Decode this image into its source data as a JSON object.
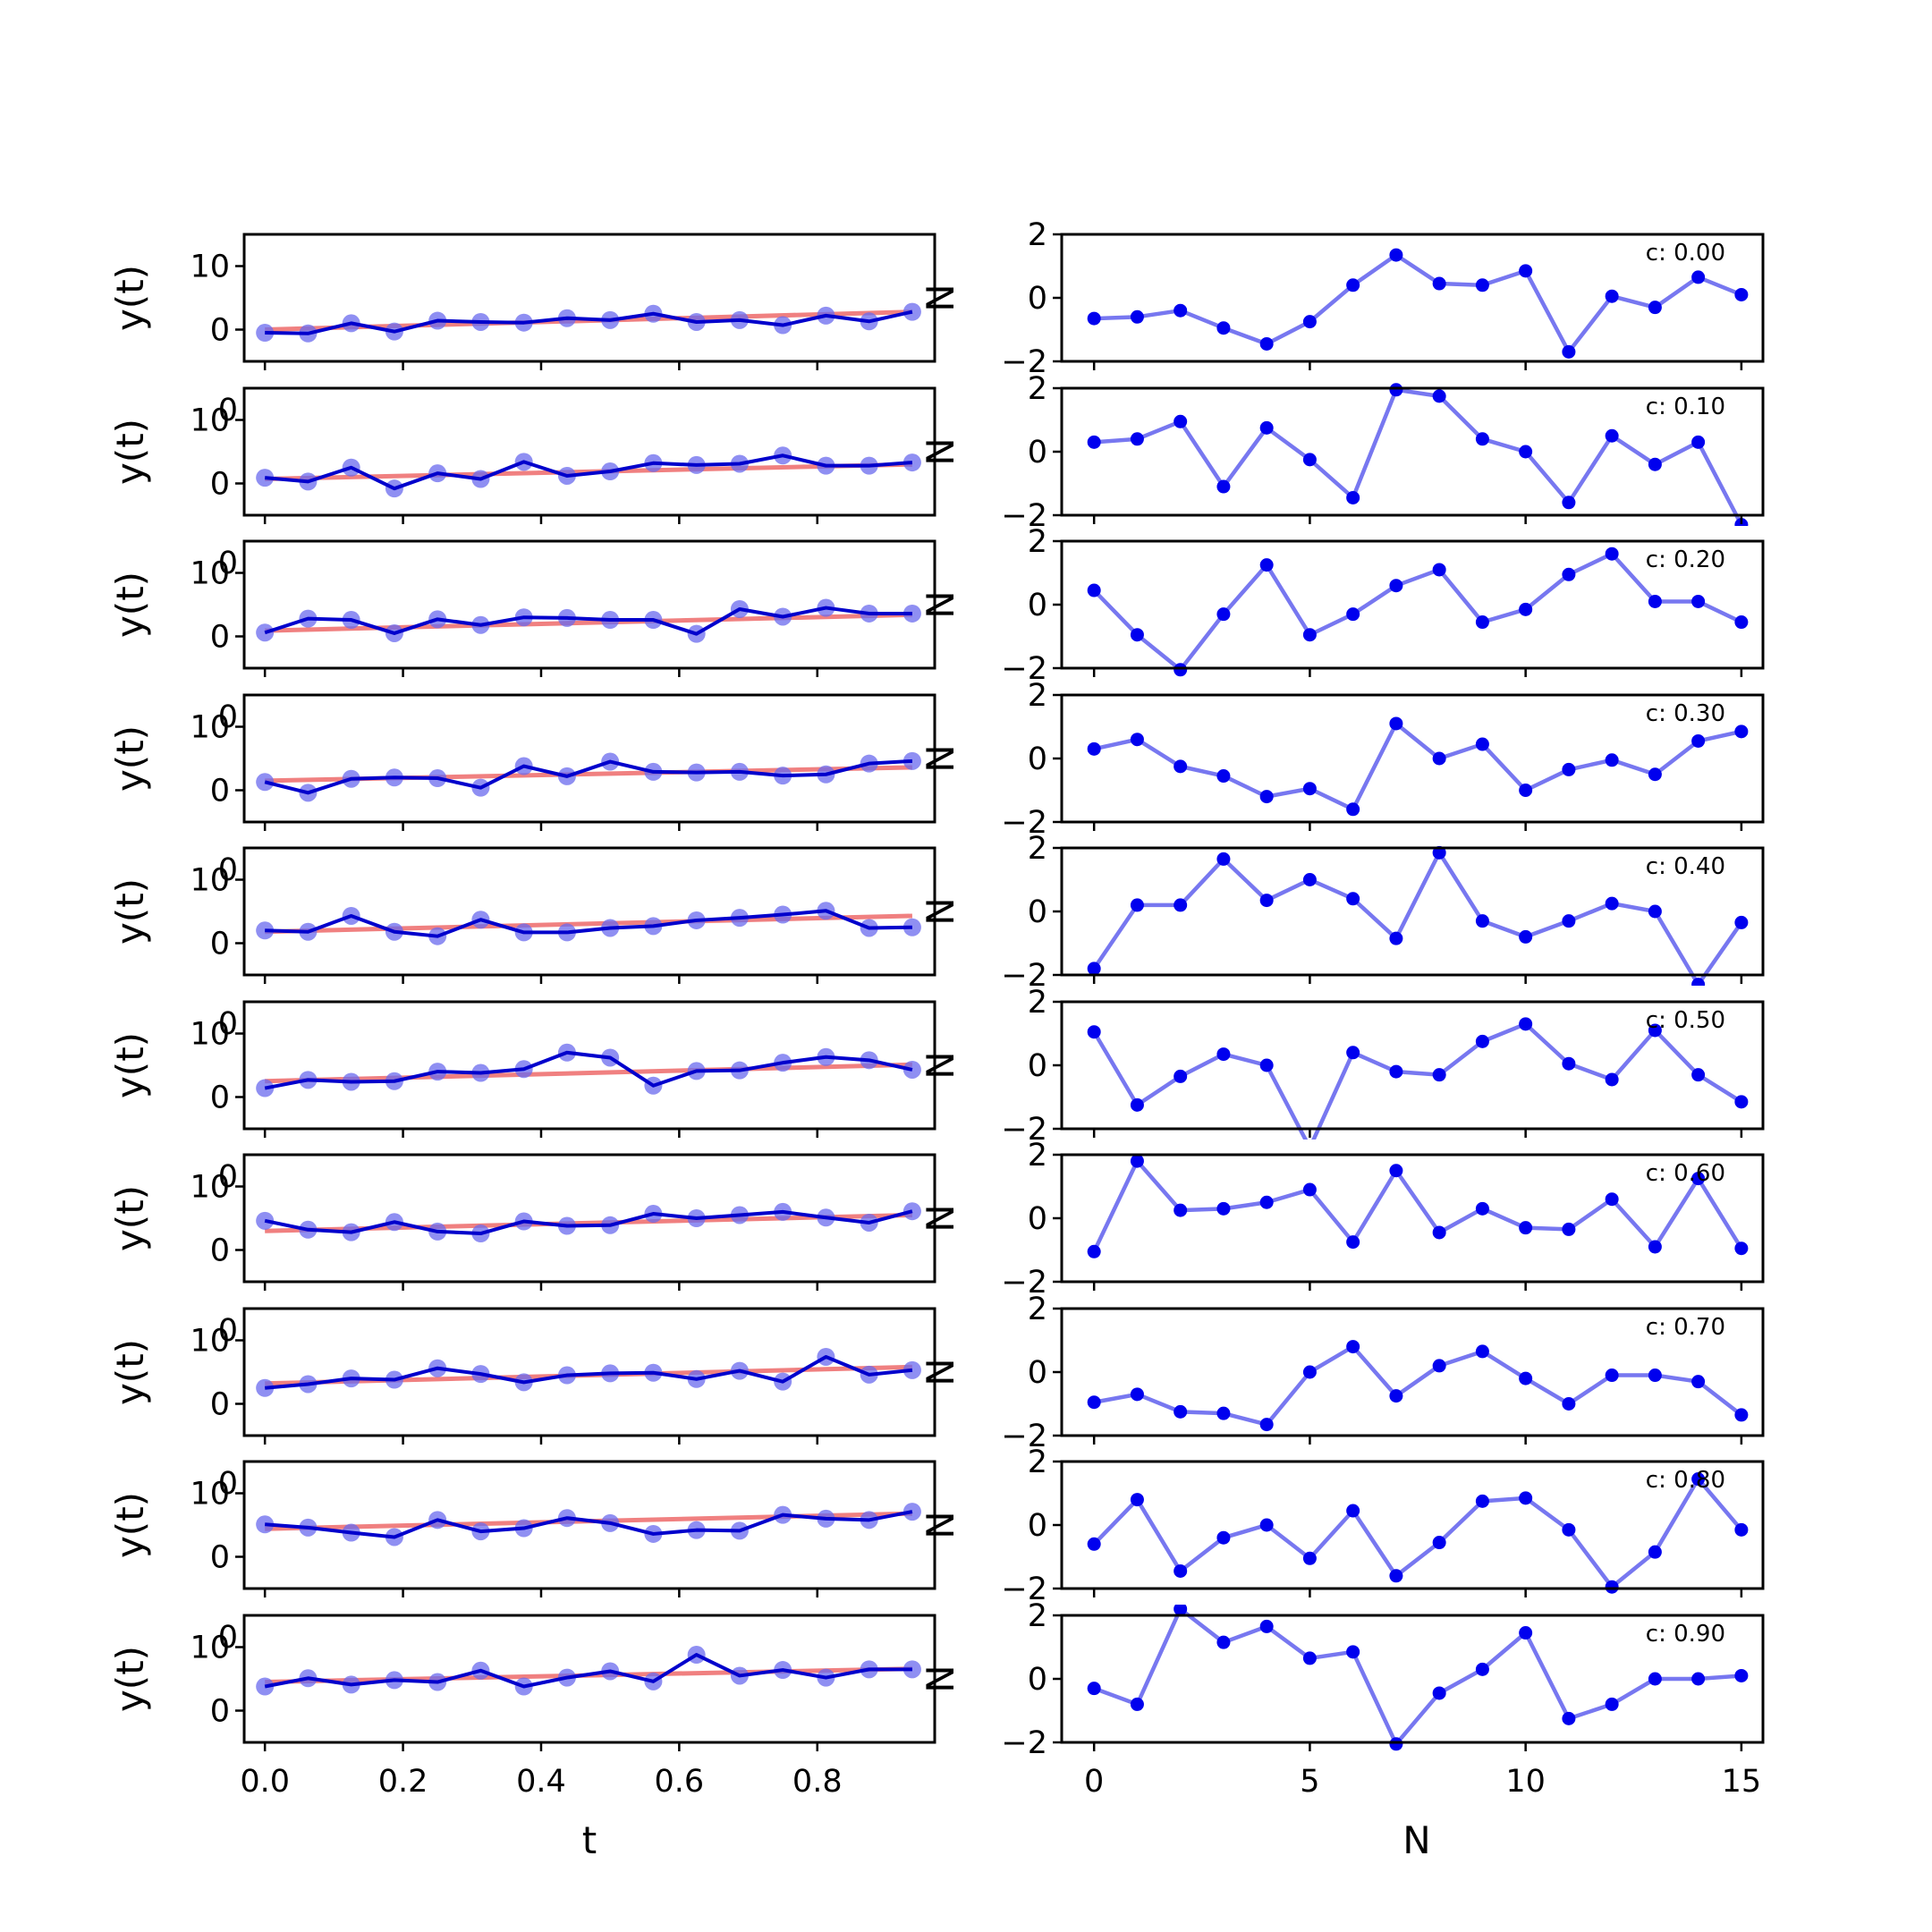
{
  "colors": {
    "trend": "#f08080",
    "series": "#0000cc",
    "series_markers": "#6a6aee",
    "noise": "#7777f0",
    "noise_markers": "#0000ee"
  },
  "left_axis_labels": {
    "ylabel": "y(t)",
    "xlabel": "t",
    "overlap_glyph": "0"
  },
  "right_axis_labels": {
    "ylabel": "N",
    "xlabel": "N"
  },
  "chart_data": [
    {
      "type": "line",
      "panel": "left",
      "xlabel": "t",
      "ylabel": "y(t)",
      "xlim": [
        -0.03,
        0.97
      ],
      "ylim": [
        -5,
        15
      ],
      "xticks": [
        0.0,
        0.2,
        0.4,
        0.6,
        0.8
      ],
      "xtick_labels": [
        "0.0",
        "0.2",
        "0.4",
        "0.6",
        "0.8"
      ],
      "yticks": [
        0,
        10
      ],
      "yticks_labels": [
        "0",
        "10"
      ],
      "x": [
        0.0,
        0.0625,
        0.125,
        0.1875,
        0.25,
        0.3125,
        0.375,
        0.4375,
        0.5,
        0.5625,
        0.625,
        0.6875,
        0.75,
        0.8125,
        0.875,
        0.9375
      ],
      "series": [
        {
          "values": [
            -0.5,
            -0.6,
            1.0,
            -0.3,
            1.4,
            1.2,
            1.1,
            1.8,
            1.5,
            2.5,
            1.2,
            1.5,
            0.7,
            2.2,
            1.3,
            2.8
          ],
          "trend": [
            0.0,
            2.8
          ]
        },
        {
          "values": [
            0.9,
            0.3,
            2.5,
            -0.8,
            1.6,
            0.7,
            3.4,
            1.2,
            1.9,
            3.2,
            2.9,
            3.1,
            4.4,
            2.8,
            2.8,
            3.3
          ],
          "trend": [
            0.7,
            3.0
          ]
        },
        {
          "values": [
            0.6,
            2.8,
            2.6,
            0.5,
            2.7,
            1.8,
            3.0,
            2.9,
            2.6,
            2.6,
            0.4,
            4.3,
            3.1,
            4.5,
            3.6,
            3.6
          ],
          "trend": [
            0.9,
            3.4
          ]
        },
        {
          "values": [
            1.3,
            -0.4,
            1.8,
            2.0,
            1.9,
            0.4,
            3.8,
            2.2,
            4.5,
            2.9,
            2.8,
            2.9,
            2.3,
            2.5,
            4.2,
            4.6
          ],
          "trend": [
            1.5,
            3.6
          ]
        },
        {
          "values": [
            2.0,
            1.8,
            4.3,
            1.8,
            1.1,
            3.7,
            1.7,
            1.7,
            2.4,
            2.7,
            3.6,
            4.0,
            4.5,
            5.1,
            2.4,
            2.5
          ],
          "trend": [
            1.8,
            4.3
          ]
        },
        {
          "values": [
            1.4,
            2.7,
            2.4,
            2.5,
            4.0,
            3.8,
            4.4,
            7.0,
            6.2,
            1.8,
            4.1,
            4.2,
            5.4,
            6.3,
            5.8,
            4.3
          ],
          "trend": [
            2.5,
            5.1
          ]
        },
        {
          "values": [
            4.6,
            3.2,
            2.8,
            4.4,
            2.9,
            2.6,
            4.5,
            3.8,
            3.9,
            5.7,
            5.0,
            5.5,
            6.0,
            5.1,
            4.3,
            6.1
          ],
          "trend": [
            3.0,
            5.5
          ]
        },
        {
          "values": [
            2.5,
            3.1,
            4.0,
            3.8,
            5.6,
            4.7,
            3.4,
            4.5,
            4.8,
            4.9,
            3.9,
            5.2,
            3.5,
            7.4,
            4.6,
            5.3
          ],
          "trend": [
            3.2,
            5.8
          ]
        },
        {
          "values": [
            5.1,
            4.6,
            3.8,
            3.1,
            5.8,
            4.0,
            4.5,
            6.1,
            5.3,
            3.6,
            4.2,
            4.1,
            6.6,
            6.0,
            5.8,
            7.1
          ],
          "trend": [
            4.4,
            6.8
          ]
        },
        {
          "values": [
            3.8,
            5.1,
            4.1,
            4.8,
            4.5,
            6.3,
            3.8,
            5.2,
            6.2,
            4.6,
            8.8,
            5.5,
            6.4,
            5.2,
            6.5,
            6.5
          ],
          "trend": [
            4.5,
            6.6
          ]
        }
      ]
    },
    {
      "type": "line",
      "panel": "right",
      "xlabel": "N",
      "ylabel": "N",
      "xlim": [
        -0.75,
        15.5
      ],
      "ylim": [
        -2,
        2
      ],
      "xticks": [
        0,
        5,
        10,
        15
      ],
      "xtick_labels": [
        "0",
        "5",
        "10",
        "15"
      ],
      "yticks": [
        -2,
        0,
        2
      ],
      "yticks_labels": [
        "−2",
        "0",
        "2"
      ],
      "x": [
        0,
        1,
        2,
        3,
        4,
        5,
        6,
        7,
        8,
        9,
        10,
        11,
        12,
        13,
        14,
        15
      ],
      "series": [
        {
          "annotation": "c: 0.00",
          "values": [
            -0.65,
            -0.6,
            -0.4,
            -0.95,
            -1.45,
            -0.75,
            0.4,
            1.35,
            0.45,
            0.4,
            0.85,
            -1.7,
            0.05,
            -0.3,
            0.65,
            0.1
          ]
        },
        {
          "annotation": "c: 0.10",
          "values": [
            0.3,
            0.4,
            0.95,
            -1.1,
            0.75,
            -0.25,
            -1.45,
            1.95,
            1.75,
            0.4,
            0.0,
            -1.6,
            0.5,
            -0.4,
            0.3,
            -2.3
          ]
        },
        {
          "annotation": "c: 0.20",
          "values": [
            0.45,
            -0.95,
            -2.05,
            -0.3,
            1.25,
            -0.95,
            -0.3,
            0.6,
            1.1,
            -0.55,
            -0.15,
            0.95,
            1.6,
            0.1,
            0.1,
            -0.55
          ]
        },
        {
          "annotation": "c: 0.30",
          "values": [
            0.3,
            0.6,
            -0.25,
            -0.55,
            -1.2,
            -0.95,
            -1.6,
            1.1,
            0.0,
            0.45,
            -1.0,
            -0.35,
            -0.05,
            -0.5,
            0.55,
            0.85
          ]
        },
        {
          "annotation": "c: 0.40",
          "values": [
            -1.8,
            0.2,
            0.2,
            1.65,
            0.35,
            1.0,
            0.4,
            -0.85,
            1.85,
            -0.3,
            -0.8,
            -0.3,
            0.25,
            0.0,
            -2.3,
            -0.35
          ]
        },
        {
          "annotation": "c: 0.50",
          "values": [
            1.05,
            -1.25,
            -0.35,
            0.35,
            0.0,
            -2.6,
            0.4,
            -0.2,
            -0.3,
            0.75,
            1.3,
            0.05,
            -0.45,
            1.1,
            -0.3,
            -1.15
          ]
        },
        {
          "annotation": "c: 0.60",
          "values": [
            -1.05,
            1.8,
            0.25,
            0.3,
            0.5,
            0.9,
            -0.75,
            1.5,
            -0.45,
            0.3,
            -0.3,
            -0.35,
            0.6,
            -0.9,
            1.25,
            -0.95
          ]
        },
        {
          "annotation": "c: 0.70",
          "values": [
            -0.95,
            -0.7,
            -1.25,
            -1.3,
            -1.65,
            0.0,
            0.8,
            -0.75,
            0.2,
            0.65,
            -0.2,
            -1.0,
            -0.1,
            -0.1,
            -0.3,
            -1.35
          ]
        },
        {
          "annotation": "c: 0.80",
          "values": [
            -0.6,
            0.8,
            -1.45,
            -0.4,
            0.0,
            -1.05,
            0.45,
            -1.6,
            -0.55,
            0.75,
            0.85,
            -0.15,
            -1.95,
            -0.85,
            1.45,
            -0.15
          ]
        },
        {
          "annotation": "c: 0.90",
          "values": [
            -0.3,
            -0.8,
            2.2,
            1.15,
            1.65,
            0.65,
            0.85,
            -2.05,
            -0.45,
            0.3,
            1.45,
            -1.25,
            -0.8,
            0.0,
            0.0,
            0.1
          ]
        }
      ]
    }
  ]
}
